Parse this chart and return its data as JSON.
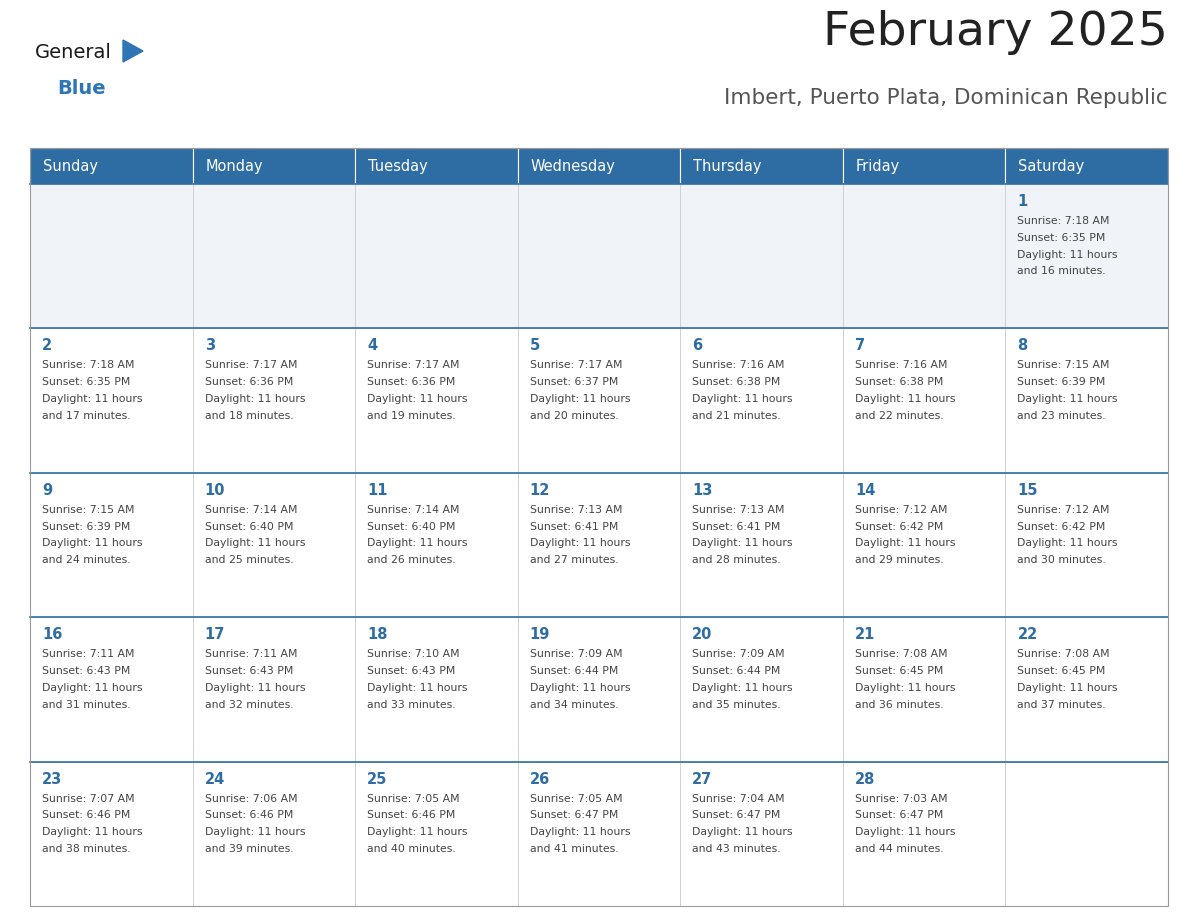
{
  "title": "February 2025",
  "subtitle": "Imbert, Puerto Plata, Dominican Republic",
  "days_of_week": [
    "Sunday",
    "Monday",
    "Tuesday",
    "Wednesday",
    "Thursday",
    "Friday",
    "Saturday"
  ],
  "header_bg": "#2E6DA4",
  "header_text": "#FFFFFF",
  "row_bg_light": "#F0F4F8",
  "row_bg_white": "#FFFFFF",
  "cell_border": "#AAAAAA",
  "row_border": "#2E6DA4",
  "day_num_color": "#2E6DA4",
  "info_color": "#444444",
  "title_color": "#222222",
  "subtitle_color": "#555555",
  "logo_general_color": "#1A1A1A",
  "logo_blue_color": "#2E75B6",
  "calendar": [
    [
      null,
      null,
      null,
      null,
      null,
      null,
      1
    ],
    [
      2,
      3,
      4,
      5,
      6,
      7,
      8
    ],
    [
      9,
      10,
      11,
      12,
      13,
      14,
      15
    ],
    [
      16,
      17,
      18,
      19,
      20,
      21,
      22
    ],
    [
      23,
      24,
      25,
      26,
      27,
      28,
      null
    ]
  ],
  "day_data": {
    "1": {
      "sunrise": "7:18 AM",
      "sunset": "6:35 PM",
      "daylight_h": "11 hours",
      "daylight_m": "16 minutes"
    },
    "2": {
      "sunrise": "7:18 AM",
      "sunset": "6:35 PM",
      "daylight_h": "11 hours",
      "daylight_m": "17 minutes"
    },
    "3": {
      "sunrise": "7:17 AM",
      "sunset": "6:36 PM",
      "daylight_h": "11 hours",
      "daylight_m": "18 minutes"
    },
    "4": {
      "sunrise": "7:17 AM",
      "sunset": "6:36 PM",
      "daylight_h": "11 hours",
      "daylight_m": "19 minutes"
    },
    "5": {
      "sunrise": "7:17 AM",
      "sunset": "6:37 PM",
      "daylight_h": "11 hours",
      "daylight_m": "20 minutes"
    },
    "6": {
      "sunrise": "7:16 AM",
      "sunset": "6:38 PM",
      "daylight_h": "11 hours",
      "daylight_m": "21 minutes"
    },
    "7": {
      "sunrise": "7:16 AM",
      "sunset": "6:38 PM",
      "daylight_h": "11 hours",
      "daylight_m": "22 minutes"
    },
    "8": {
      "sunrise": "7:15 AM",
      "sunset": "6:39 PM",
      "daylight_h": "11 hours",
      "daylight_m": "23 minutes"
    },
    "9": {
      "sunrise": "7:15 AM",
      "sunset": "6:39 PM",
      "daylight_h": "11 hours",
      "daylight_m": "24 minutes"
    },
    "10": {
      "sunrise": "7:14 AM",
      "sunset": "6:40 PM",
      "daylight_h": "11 hours",
      "daylight_m": "25 minutes"
    },
    "11": {
      "sunrise": "7:14 AM",
      "sunset": "6:40 PM",
      "daylight_h": "11 hours",
      "daylight_m": "26 minutes"
    },
    "12": {
      "sunrise": "7:13 AM",
      "sunset": "6:41 PM",
      "daylight_h": "11 hours",
      "daylight_m": "27 minutes"
    },
    "13": {
      "sunrise": "7:13 AM",
      "sunset": "6:41 PM",
      "daylight_h": "11 hours",
      "daylight_m": "28 minutes"
    },
    "14": {
      "sunrise": "7:12 AM",
      "sunset": "6:42 PM",
      "daylight_h": "11 hours",
      "daylight_m": "29 minutes"
    },
    "15": {
      "sunrise": "7:12 AM",
      "sunset": "6:42 PM",
      "daylight_h": "11 hours",
      "daylight_m": "30 minutes"
    },
    "16": {
      "sunrise": "7:11 AM",
      "sunset": "6:43 PM",
      "daylight_h": "11 hours",
      "daylight_m": "31 minutes"
    },
    "17": {
      "sunrise": "7:11 AM",
      "sunset": "6:43 PM",
      "daylight_h": "11 hours",
      "daylight_m": "32 minutes"
    },
    "18": {
      "sunrise": "7:10 AM",
      "sunset": "6:43 PM",
      "daylight_h": "11 hours",
      "daylight_m": "33 minutes"
    },
    "19": {
      "sunrise": "7:09 AM",
      "sunset": "6:44 PM",
      "daylight_h": "11 hours",
      "daylight_m": "34 minutes"
    },
    "20": {
      "sunrise": "7:09 AM",
      "sunset": "6:44 PM",
      "daylight_h": "11 hours",
      "daylight_m": "35 minutes"
    },
    "21": {
      "sunrise": "7:08 AM",
      "sunset": "6:45 PM",
      "daylight_h": "11 hours",
      "daylight_m": "36 minutes"
    },
    "22": {
      "sunrise": "7:08 AM",
      "sunset": "6:45 PM",
      "daylight_h": "11 hours",
      "daylight_m": "37 minutes"
    },
    "23": {
      "sunrise": "7:07 AM",
      "sunset": "6:46 PM",
      "daylight_h": "11 hours",
      "daylight_m": "38 minutes"
    },
    "24": {
      "sunrise": "7:06 AM",
      "sunset": "6:46 PM",
      "daylight_h": "11 hours",
      "daylight_m": "39 minutes"
    },
    "25": {
      "sunrise": "7:05 AM",
      "sunset": "6:46 PM",
      "daylight_h": "11 hours",
      "daylight_m": "40 minutes"
    },
    "26": {
      "sunrise": "7:05 AM",
      "sunset": "6:47 PM",
      "daylight_h": "11 hours",
      "daylight_m": "41 minutes"
    },
    "27": {
      "sunrise": "7:04 AM",
      "sunset": "6:47 PM",
      "daylight_h": "11 hours",
      "daylight_m": "43 minutes"
    },
    "28": {
      "sunrise": "7:03 AM",
      "sunset": "6:47 PM",
      "daylight_h": "11 hours",
      "daylight_m": "44 minutes"
    }
  }
}
